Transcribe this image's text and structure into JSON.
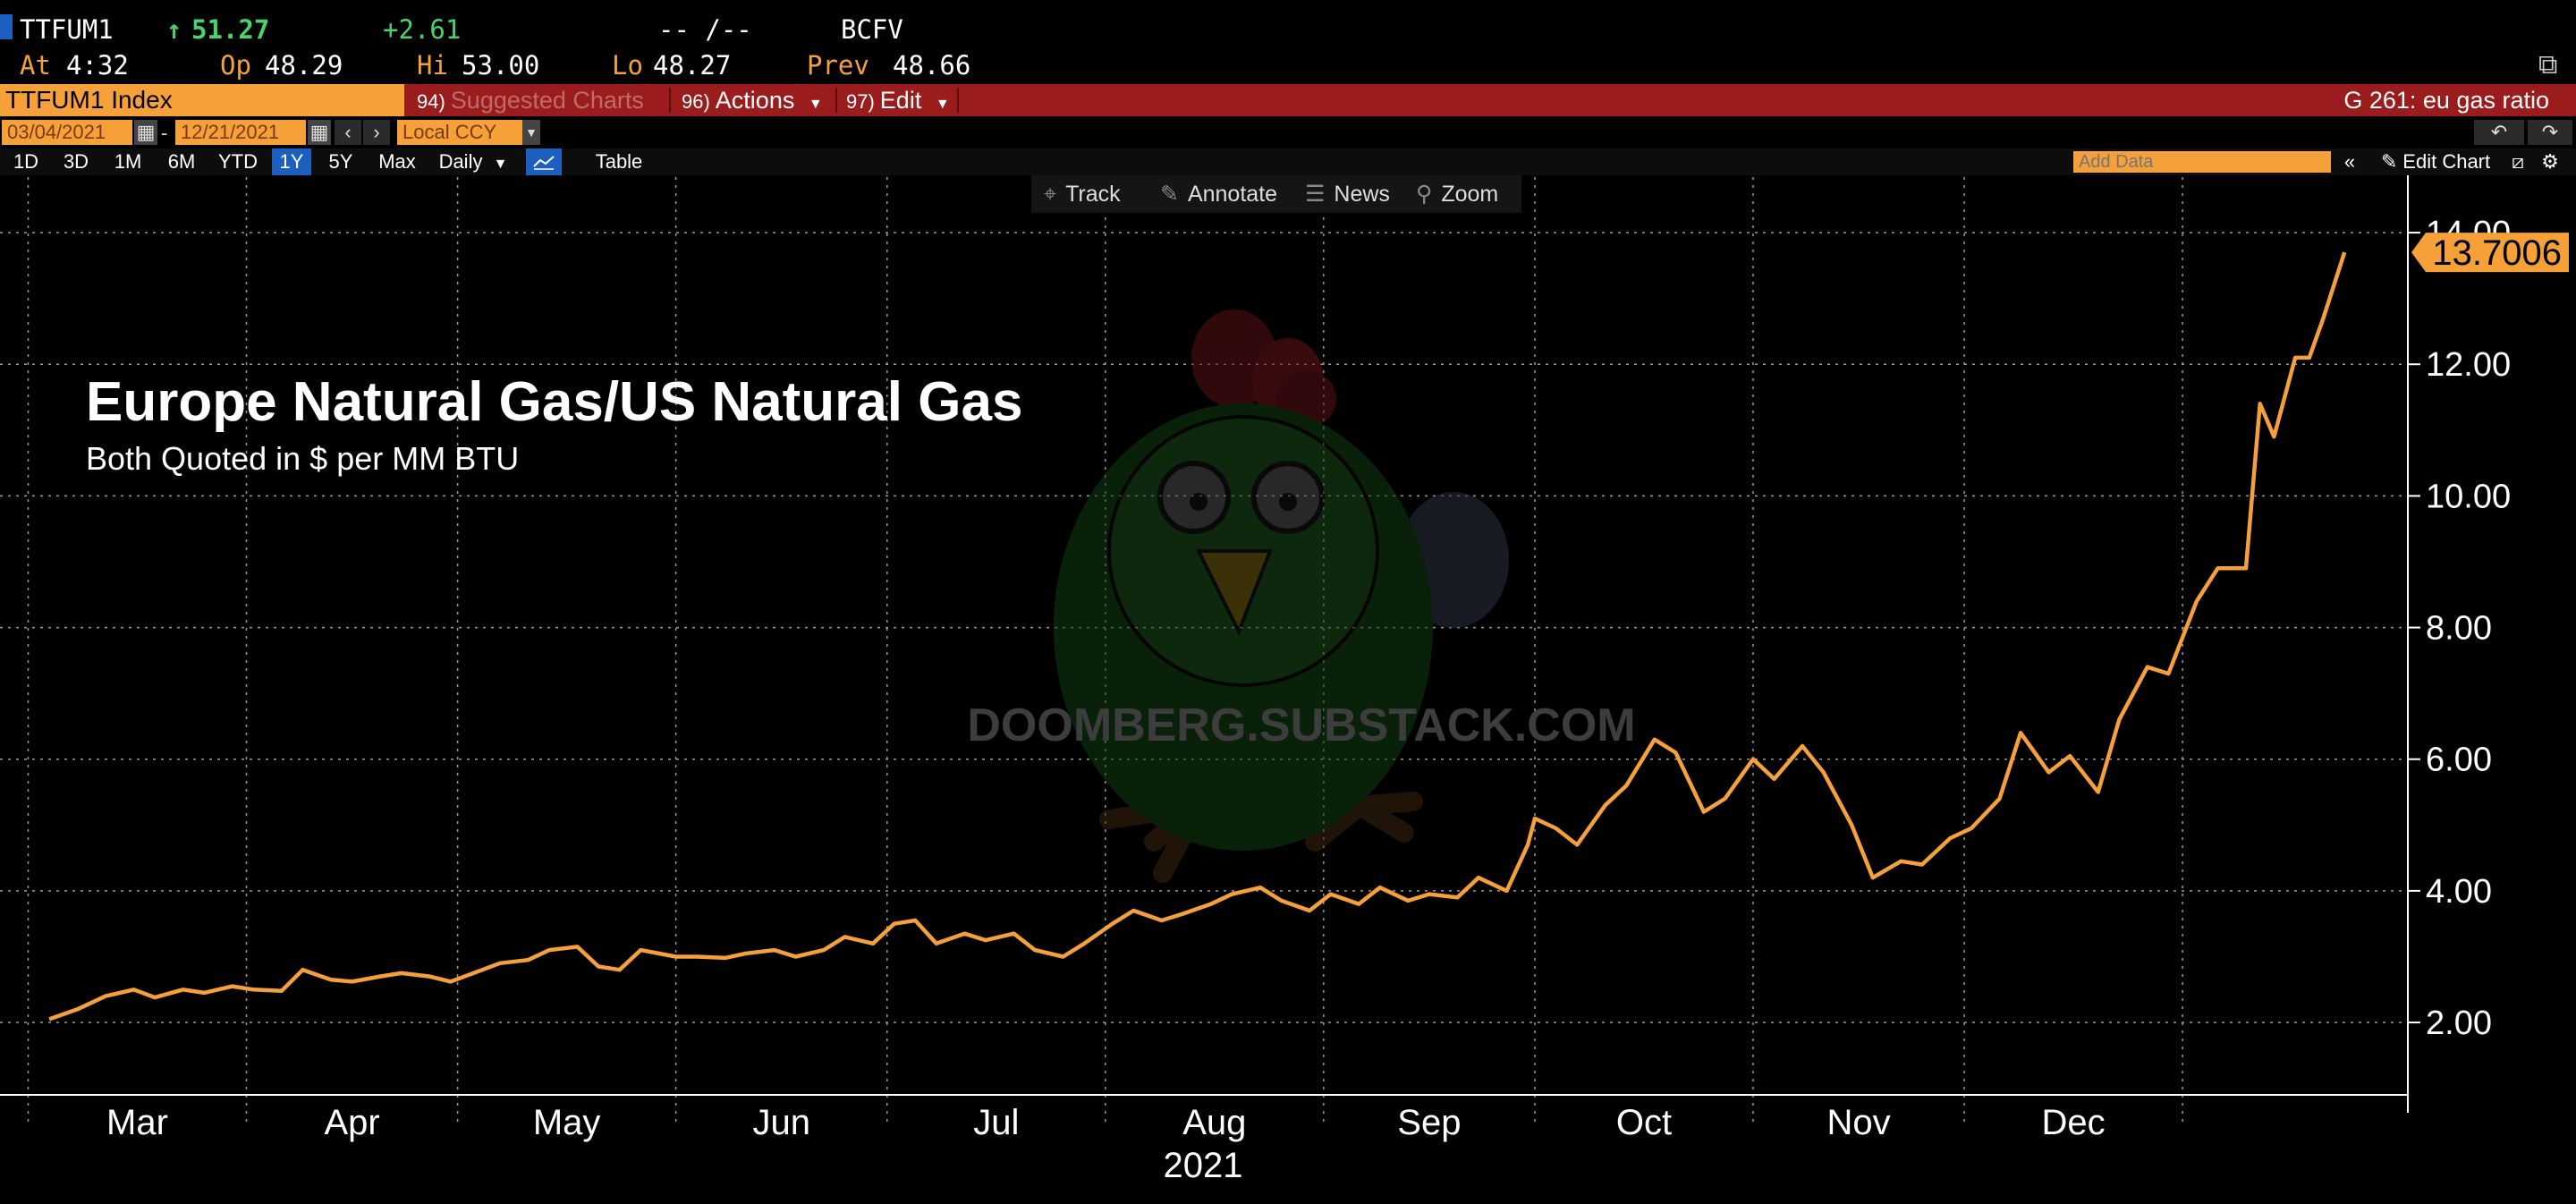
{
  "quote": {
    "ticker": "TTFUM1",
    "last": "51.27",
    "change": "+2.61",
    "bidask": "-- /--",
    "source": "BCFV",
    "at_label": "At",
    "at_value": "4:32",
    "op_label": "Op",
    "op_value": "48.29",
    "hi_label": "Hi",
    "hi_value": "53.00",
    "lo_label": "Lo",
    "lo_value": "48.27",
    "prev_label": "Prev",
    "prev_value": "48.66"
  },
  "command_bar": {
    "security": "TTFUM1 Index",
    "suggested": {
      "num": "94)",
      "label": "Suggested Charts"
    },
    "actions": {
      "num": "96)",
      "label": "Actions"
    },
    "edit": {
      "num": "97)",
      "label": "Edit"
    },
    "chart_title": "G 261: eu gas ratio"
  },
  "date_row": {
    "start": "03/04/2021",
    "dash": "-",
    "end": "12/21/2021",
    "currency": "Local CCY"
  },
  "range_row": {
    "ranges": [
      "1D",
      "3D",
      "1M",
      "6M",
      "YTD",
      "1Y",
      "5Y",
      "Max"
    ],
    "active": "1Y",
    "period": "Daily",
    "table": "Table",
    "add_data_placeholder": "Add Data",
    "edit_chart": "Edit Chart"
  },
  "toolbar": {
    "track": "Track",
    "annotate": "Annotate",
    "news": "News",
    "zoom": "Zoom"
  },
  "overlay": {
    "title": "Europe Natural Gas/US Natural Gas",
    "subtitle": "Both Quoted in $ per MM BTU",
    "watermark": "DOOMBERG.SUBSTACK.COM"
  },
  "colors": {
    "line": "#f6a03a",
    "accent_orange": "#f6a03a",
    "bar_red": "#9b1c1c",
    "active_blue": "#1c5fbf"
  },
  "chart_data": {
    "type": "line",
    "title": "",
    "xlabel": "2021",
    "ylabel": "",
    "last_value": "13.7006",
    "ylim": [
      0.9,
      14.3
    ],
    "yticks": [
      "2.00",
      "4.00",
      "6.00",
      "8.00",
      "10.00",
      "12.00",
      "14.00"
    ],
    "xticks": [
      "Mar",
      "Apr",
      "May",
      "Jun",
      "Jul",
      "Aug",
      "Sep",
      "Oct",
      "Nov",
      "Dec"
    ],
    "grid": true,
    "series": [
      {
        "values": [
          [
            "2021-03-04",
            2.05
          ],
          [
            "2021-03-08",
            2.2
          ],
          [
            "2021-03-12",
            2.4
          ],
          [
            "2021-03-16",
            2.5
          ],
          [
            "2021-03-19",
            2.38
          ],
          [
            "2021-03-23",
            2.5
          ],
          [
            "2021-03-26",
            2.45
          ],
          [
            "2021-03-30",
            2.55
          ],
          [
            "2021-04-02",
            2.5
          ],
          [
            "2021-04-06",
            2.48
          ],
          [
            "2021-04-09",
            2.8
          ],
          [
            "2021-04-13",
            2.65
          ],
          [
            "2021-04-16",
            2.62
          ],
          [
            "2021-04-20",
            2.7
          ],
          [
            "2021-04-23",
            2.75
          ],
          [
            "2021-04-27",
            2.7
          ],
          [
            "2021-04-30",
            2.62
          ],
          [
            "2021-05-04",
            2.78
          ],
          [
            "2021-05-07",
            2.9
          ],
          [
            "2021-05-11",
            2.95
          ],
          [
            "2021-05-14",
            3.1
          ],
          [
            "2021-05-18",
            3.15
          ],
          [
            "2021-05-21",
            2.85
          ],
          [
            "2021-05-24",
            2.8
          ],
          [
            "2021-05-27",
            3.1
          ],
          [
            "2021-06-01",
            3.0
          ],
          [
            "2021-06-04",
            3.0
          ],
          [
            "2021-06-08",
            2.98
          ],
          [
            "2021-06-11",
            3.05
          ],
          [
            "2021-06-15",
            3.1
          ],
          [
            "2021-06-18",
            3.0
          ],
          [
            "2021-06-22",
            3.1
          ],
          [
            "2021-06-25",
            3.3
          ],
          [
            "2021-06-29",
            3.2
          ],
          [
            "2021-07-02",
            3.5
          ],
          [
            "2021-07-05",
            3.55
          ],
          [
            "2021-07-08",
            3.2
          ],
          [
            "2021-07-12",
            3.35
          ],
          [
            "2021-07-15",
            3.25
          ],
          [
            "2021-07-19",
            3.35
          ],
          [
            "2021-07-22",
            3.1
          ],
          [
            "2021-07-26",
            3.0
          ],
          [
            "2021-07-29",
            3.2
          ],
          [
            "2021-08-02",
            3.5
          ],
          [
            "2021-08-05",
            3.7
          ],
          [
            "2021-08-09",
            3.55
          ],
          [
            "2021-08-12",
            3.65
          ],
          [
            "2021-08-16",
            3.8
          ],
          [
            "2021-08-19",
            3.95
          ],
          [
            "2021-08-23",
            4.05
          ],
          [
            "2021-08-26",
            3.85
          ],
          [
            "2021-08-30",
            3.7
          ],
          [
            "2021-09-02",
            3.95
          ],
          [
            "2021-09-06",
            3.8
          ],
          [
            "2021-09-09",
            4.05
          ],
          [
            "2021-09-13",
            3.85
          ],
          [
            "2021-09-16",
            3.95
          ],
          [
            "2021-09-20",
            3.9
          ],
          [
            "2021-09-23",
            4.2
          ],
          [
            "2021-09-27",
            4.0
          ],
          [
            "2021-09-30",
            4.7
          ],
          [
            "2021-10-01",
            5.1
          ],
          [
            "2021-10-04",
            4.95
          ],
          [
            "2021-10-07",
            4.7
          ],
          [
            "2021-10-11",
            5.3
          ],
          [
            "2021-10-14",
            5.6
          ],
          [
            "2021-10-18",
            6.3
          ],
          [
            "2021-10-21",
            6.1
          ],
          [
            "2021-10-25",
            5.2
          ],
          [
            "2021-10-28",
            5.4
          ],
          [
            "2021-11-01",
            6.0
          ],
          [
            "2021-11-04",
            5.7
          ],
          [
            "2021-11-08",
            6.2
          ],
          [
            "2021-11-11",
            5.8
          ],
          [
            "2021-11-15",
            5.0
          ],
          [
            "2021-11-18",
            4.2
          ],
          [
            "2021-11-22",
            4.45
          ],
          [
            "2021-11-25",
            4.4
          ],
          [
            "2021-11-29",
            4.8
          ],
          [
            "2021-12-02",
            4.95
          ],
          [
            "2021-12-06",
            5.4
          ],
          [
            "2021-12-09",
            6.4
          ],
          [
            "2021-12-13",
            5.8
          ],
          [
            "2021-12-16",
            6.05
          ],
          [
            "2021-12-20",
            5.5
          ],
          [
            "2021-12-23",
            6.6
          ],
          [
            "2021-12-27",
            7.4
          ],
          [
            "2021-12-30",
            7.3
          ],
          [
            "2022-01-03",
            8.4
          ],
          [
            "2022-01-06",
            8.9
          ],
          [
            "2022-01-10",
            8.9
          ],
          [
            "2022-01-12",
            11.4
          ],
          [
            "2022-01-14",
            10.9
          ],
          [
            "2022-01-17",
            12.1
          ],
          [
            "2022-01-19",
            12.1
          ],
          [
            "2022-01-21",
            12.7
          ],
          [
            "2022-01-24",
            13.7006
          ]
        ]
      }
    ]
  }
}
